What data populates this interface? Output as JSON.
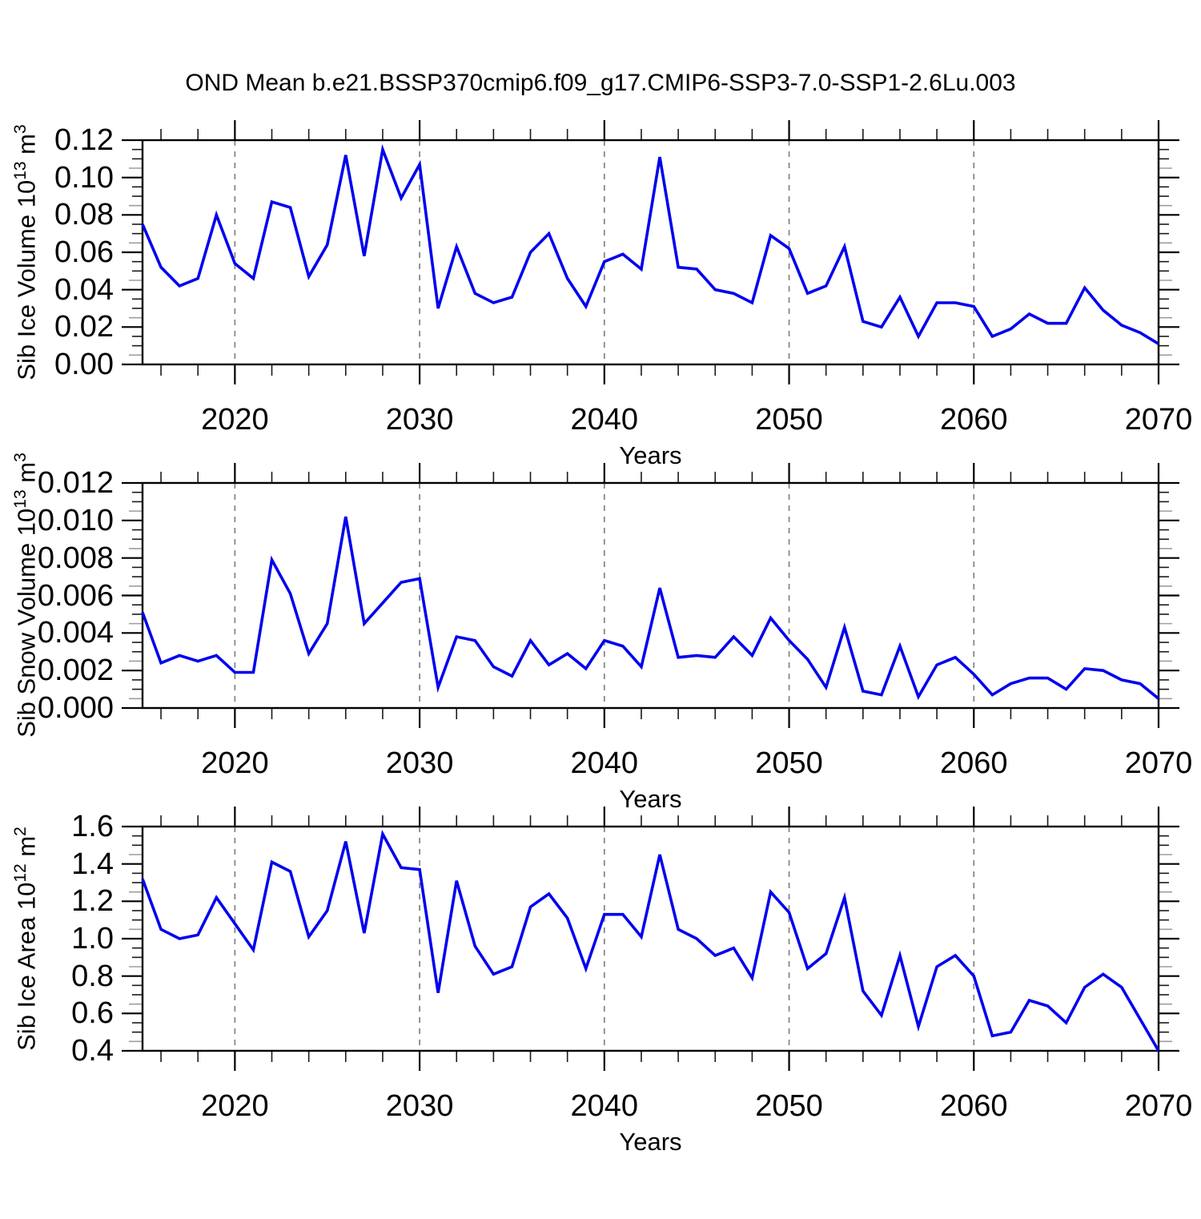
{
  "title": "OND Mean b.e21.BSSP370cmip6.f09_g17.CMIP6-SSP3-7.0-SSP1-2.6Lu.003",
  "colors": {
    "line": "#0000ee",
    "axis": "#000000",
    "grid": "#888888",
    "minor_tick": "#1a1a1a",
    "mid_tick": "#9e9e9e"
  },
  "x_axis": {
    "label": "Years",
    "years": [
      2015,
      2016,
      2017,
      2018,
      2019,
      2020,
      2021,
      2022,
      2023,
      2024,
      2025,
      2026,
      2027,
      2028,
      2029,
      2030,
      2031,
      2032,
      2033,
      2034,
      2035,
      2036,
      2037,
      2038,
      2039,
      2040,
      2041,
      2042,
      2043,
      2044,
      2045,
      2046,
      2047,
      2048,
      2049,
      2050,
      2051,
      2052,
      2053,
      2054,
      2055,
      2056,
      2057,
      2058,
      2059,
      2060,
      2061,
      2062,
      2063,
      2064,
      2065,
      2066,
      2067,
      2068,
      2069,
      2070
    ],
    "xlim": [
      2015,
      2070
    ],
    "major_ticks": [
      2020,
      2030,
      2040,
      2050,
      2060,
      2070
    ],
    "major_tick_labels": [
      "2020",
      "2030",
      "2040",
      "2050",
      "2060",
      "2070"
    ],
    "gridline_years": [
      2020,
      2030,
      2040,
      2050,
      2060
    ],
    "minor_tick_step_years": 2
  },
  "chart_data": [
    {
      "type": "line",
      "ylabel_parts": {
        "base1": "Sib Ice Volume 10",
        "sup1": "13",
        "base2": " m",
        "sup2": "3"
      },
      "xlabel": "Years",
      "ylim": [
        0,
        0.12
      ],
      "ytick_values": [
        0,
        0.02,
        0.04,
        0.06,
        0.08,
        0.1,
        0.12
      ],
      "ytick_labels": [
        "0.00",
        "0.02",
        "0.04",
        "0.06",
        "0.08",
        "0.10",
        "0.12"
      ],
      "grid": "vertical-dashed",
      "legend": "none",
      "values": [
        0.075,
        0.052,
        0.042,
        0.046,
        0.08,
        0.054,
        0.046,
        0.087,
        0.084,
        0.047,
        0.064,
        0.112,
        0.058,
        0.115,
        0.089,
        0.107,
        0.03,
        0.063,
        0.038,
        0.033,
        0.036,
        0.06,
        0.07,
        0.046,
        0.031,
        0.055,
        0.059,
        0.051,
        0.111,
        0.052,
        0.051,
        0.04,
        0.038,
        0.033,
        0.069,
        0.062,
        0.038,
        0.042,
        0.063,
        0.023,
        0.02,
        0.036,
        0.015,
        0.033,
        0.033,
        0.031,
        0.015,
        0.019,
        0.027,
        0.022,
        0.022,
        0.041,
        0.029,
        0.021,
        0.017,
        0.011
      ]
    },
    {
      "type": "line",
      "ylabel_parts": {
        "base1": "Sib Snow Volume 10",
        "sup1": "13",
        "base2": " m",
        "sup2": "3"
      },
      "xlabel": "Years",
      "ylim": [
        0,
        0.012
      ],
      "ytick_values": [
        0,
        0.002,
        0.004,
        0.006,
        0.008,
        0.01,
        0.012
      ],
      "ytick_labels": [
        "0.000",
        "0.002",
        "0.004",
        "0.006",
        "0.008",
        "0.010",
        "0.012"
      ],
      "grid": "vertical-dashed",
      "legend": "none",
      "values": [
        0.0051,
        0.0024,
        0.0028,
        0.0025,
        0.0028,
        0.0019,
        0.0019,
        0.0079,
        0.0061,
        0.0029,
        0.0045,
        0.0102,
        0.0045,
        0.0056,
        0.0067,
        0.0069,
        0.0011,
        0.0038,
        0.0036,
        0.0022,
        0.0017,
        0.0036,
        0.0023,
        0.0029,
        0.0021,
        0.0036,
        0.0033,
        0.0022,
        0.0064,
        0.0027,
        0.0028,
        0.0027,
        0.0038,
        0.0028,
        0.0048,
        0.0036,
        0.0026,
        0.0011,
        0.0043,
        0.0009,
        0.0007,
        0.0033,
        0.0006,
        0.0023,
        0.0027,
        0.0018,
        0.0007,
        0.0013,
        0.0016,
        0.0016,
        0.001,
        0.0021,
        0.002,
        0.0015,
        0.0013,
        0.0005
      ]
    },
    {
      "type": "line",
      "ylabel_parts": {
        "base1": "Sib Ice Area 10",
        "sup1": "12",
        "base2": " m",
        "sup2": "2"
      },
      "xlabel": "Years",
      "ylim": [
        0.4,
        1.6
      ],
      "ytick_values": [
        0.4,
        0.6,
        0.8,
        1.0,
        1.2,
        1.4,
        1.6
      ],
      "ytick_labels": [
        "0.4",
        "0.6",
        "0.8",
        "1.0",
        "1.2",
        "1.4",
        "1.6"
      ],
      "grid": "vertical-dashed",
      "legend": "none",
      "values": [
        1.32,
        1.05,
        1.0,
        1.02,
        1.22,
        1.08,
        0.94,
        1.41,
        1.36,
        1.01,
        1.15,
        1.52,
        1.03,
        1.56,
        1.38,
        1.37,
        0.71,
        1.31,
        0.96,
        0.81,
        0.85,
        1.17,
        1.24,
        1.11,
        0.84,
        1.13,
        1.13,
        1.01,
        1.45,
        1.05,
        1.0,
        0.91,
        0.95,
        0.79,
        1.25,
        1.14,
        0.84,
        0.92,
        1.22,
        0.72,
        0.59,
        0.91,
        0.53,
        0.85,
        0.91,
        0.8,
        0.48,
        0.5,
        0.67,
        0.64,
        0.55,
        0.74,
        0.81,
        0.74,
        0.57,
        0.4
      ]
    }
  ]
}
